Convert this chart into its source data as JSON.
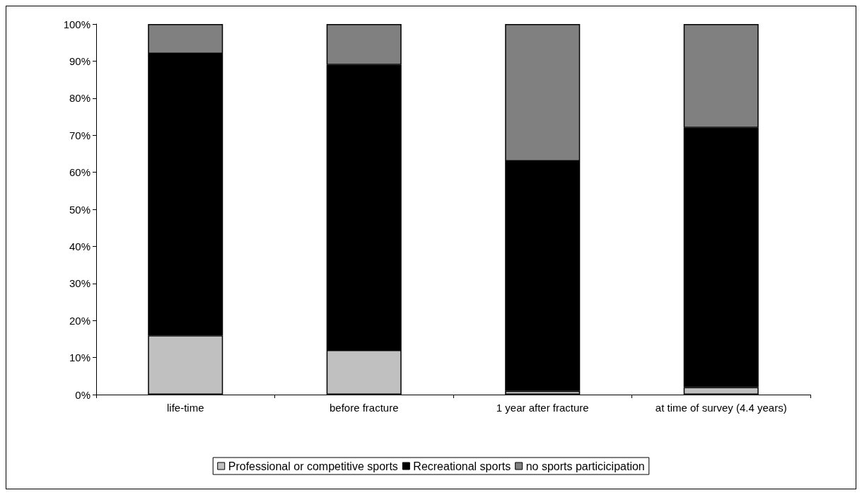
{
  "chart_data": {
    "type": "bar",
    "stacked": true,
    "categories": [
      "life-time",
      "before fracture",
      "1 year after fracture",
      "at time of survey (4.4 years)"
    ],
    "series": [
      {
        "name": "Professional or competitive sports",
        "color": "#c0c0c0",
        "values": [
          16,
          12,
          1,
          2
        ]
      },
      {
        "name": "Recreational sports",
        "color": "#000000",
        "values": [
          76,
          77,
          62,
          70
        ]
      },
      {
        "name": "no sports particicipation",
        "color": "#808080",
        "values": [
          8,
          11,
          37,
          28
        ]
      }
    ],
    "ylim": [
      0,
      100
    ],
    "yticks": [
      {
        "value": 0,
        "label": "0%"
      },
      {
        "value": 10,
        "label": "10%"
      },
      {
        "value": 20,
        "label": "20%"
      },
      {
        "value": 30,
        "label": "30%"
      },
      {
        "value": 40,
        "label": "40%"
      },
      {
        "value": 50,
        "label": "50%"
      },
      {
        "value": 60,
        "label": "60%"
      },
      {
        "value": 70,
        "label": "70%"
      },
      {
        "value": 80,
        "label": "80%"
      },
      {
        "value": 90,
        "label": "90%"
      },
      {
        "value": 100,
        "label": "100%"
      }
    ],
    "grid": false,
    "legend": "bottom"
  }
}
